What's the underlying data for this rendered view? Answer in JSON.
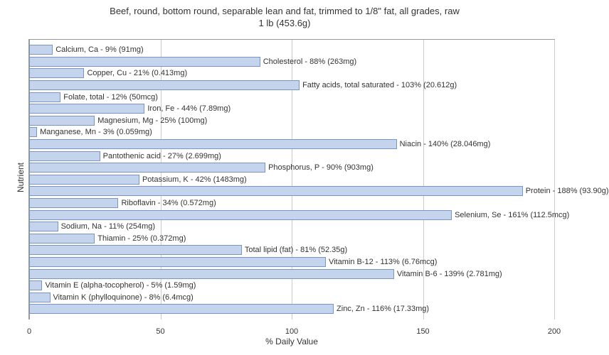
{
  "chart": {
    "type": "bar-horizontal",
    "title_line1": "Beef, round, bottom round, separable lean and fat, trimmed to 1/8\" fat, all grades, raw",
    "title_line2": "1 lb (453.6g)",
    "title_fontsize": 13,
    "xlabel": "% Daily Value",
    "ylabel": "Nutrient",
    "label_fontsize": 12,
    "xlim_min": 0,
    "xlim_max": 200,
    "xtick_step": 50,
    "xticks": [
      0,
      50,
      100,
      150,
      200
    ],
    "bar_color": "#c5d4ed",
    "bar_border_color": "#7a95c3",
    "grid_color": "#cccccc",
    "axis_color": "#999999",
    "background_color": "#ffffff",
    "text_color": "#333333",
    "bar_label_fontsize": 11,
    "nutrients": [
      {
        "label": "Calcium, Ca - 9% (91mg)",
        "value": 9
      },
      {
        "label": "Cholesterol - 88% (263mg)",
        "value": 88
      },
      {
        "label": "Copper, Cu - 21% (0.413mg)",
        "value": 21
      },
      {
        "label": "Fatty acids, total saturated - 103% (20.612g)",
        "value": 103
      },
      {
        "label": "Folate, total - 12% (50mcg)",
        "value": 12
      },
      {
        "label": "Iron, Fe - 44% (7.89mg)",
        "value": 44
      },
      {
        "label": "Magnesium, Mg - 25% (100mg)",
        "value": 25
      },
      {
        "label": "Manganese, Mn - 3% (0.059mg)",
        "value": 3
      },
      {
        "label": "Niacin - 140% (28.046mg)",
        "value": 140
      },
      {
        "label": "Pantothenic acid - 27% (2.699mg)",
        "value": 27
      },
      {
        "label": "Phosphorus, P - 90% (903mg)",
        "value": 90
      },
      {
        "label": "Potassium, K - 42% (1483mg)",
        "value": 42
      },
      {
        "label": "Protein - 188% (93.90g)",
        "value": 188
      },
      {
        "label": "Riboflavin - 34% (0.572mg)",
        "value": 34
      },
      {
        "label": "Selenium, Se - 161% (112.5mcg)",
        "value": 161
      },
      {
        "label": "Sodium, Na - 11% (254mg)",
        "value": 11
      },
      {
        "label": "Thiamin - 25% (0.372mg)",
        "value": 25
      },
      {
        "label": "Total lipid (fat) - 81% (52.35g)",
        "value": 81
      },
      {
        "label": "Vitamin B-12 - 113% (6.76mcg)",
        "value": 113
      },
      {
        "label": "Vitamin B-6 - 139% (2.781mg)",
        "value": 139
      },
      {
        "label": "Vitamin E (alpha-tocopherol) - 5% (1.59mg)",
        "value": 5
      },
      {
        "label": "Vitamin K (phylloquinone) - 8% (6.4mcg)",
        "value": 8
      },
      {
        "label": "Zinc, Zn - 116% (17.33mg)",
        "value": 116
      }
    ]
  }
}
